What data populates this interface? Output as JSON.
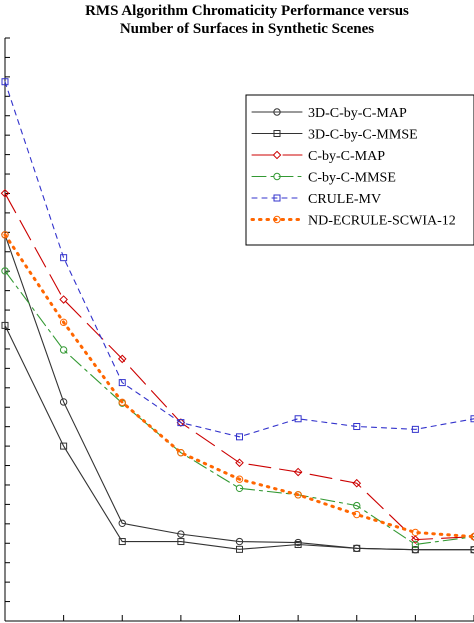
{
  "chart_data": {
    "type": "line",
    "title": "RMS Algorithm Chromaticity Performance versus",
    "subtitle": "Number of Surfaces in Synthetic Scenes",
    "xlabel": "",
    "ylabel": "",
    "x": [
      1,
      2,
      3,
      4,
      5,
      6,
      7,
      8,
      9
    ],
    "xlim": [
      1,
      9
    ],
    "ylim": [
      0,
      1
    ],
    "grid": false,
    "legend_position": "top-right",
    "series": [
      {
        "name": "3D-C-by-C-MAP",
        "color": "#333333",
        "dash": "solid",
        "marker": "circle",
        "values": [
          0.6625,
          0.3757,
          0.1676,
          0.149,
          0.1363,
          0.1346,
          0.1246,
          0.1223,
          0.1223
        ]
      },
      {
        "name": "3D-C-by-C-MMSE",
        "color": "#333333",
        "dash": "solid",
        "marker": "square",
        "values": [
          0.507,
          0.3,
          0.1363,
          0.1363,
          0.1229,
          0.1312,
          0.1246,
          0.1223,
          0.1223
        ]
      },
      {
        "name": "C-by-C-MAP",
        "color": "#cc0000",
        "dash": "longdash",
        "marker": "diamond",
        "values": [
          0.7336,
          0.5514,
          0.4496,
          0.3403,
          0.2714,
          0.2555,
          0.2363,
          0.1396,
          0.1446
        ]
      },
      {
        "name": "C-by-C-MMSE",
        "color": "#339933",
        "dash": "dashdot",
        "marker": "circle",
        "values": [
          0.6005,
          0.4649,
          0.3736,
          0.2887,
          0.2276,
          0.2165,
          0.1979,
          0.1313,
          0.1446
        ]
      },
      {
        "name": "CRULE-MV",
        "color": "#3333cc",
        "dash": "shortdash",
        "marker": "square",
        "values": [
          0.925,
          0.6232,
          0.4089,
          0.3403,
          0.3159,
          0.3469,
          0.3336,
          0.3287,
          0.3469
        ]
      },
      {
        "name": "ND-ECRULE-SCWIA-12",
        "color": "#ff6600",
        "dash": "dotted",
        "marker": "circle",
        "values": [
          0.6625,
          0.5123,
          0.3751,
          0.2887,
          0.2432,
          0.2165,
          0.1826,
          0.1519,
          0.1446
        ]
      }
    ]
  }
}
